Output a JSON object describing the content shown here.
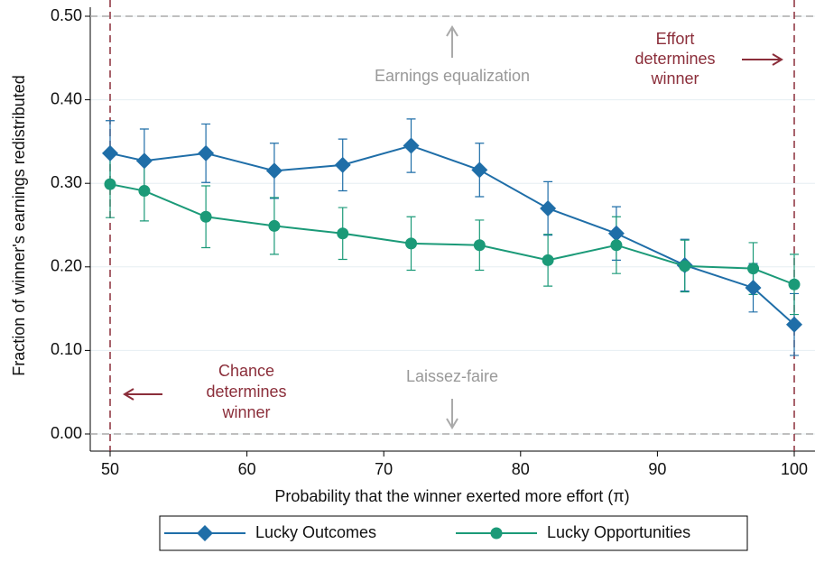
{
  "chart_data": {
    "type": "line",
    "ylabel": "Fraction of winner's earnings redistributed",
    "xlabel": "Probability that the winner exerted more effort (π)",
    "x": [
      50,
      52.5,
      57,
      62,
      67,
      72,
      77,
      82,
      87,
      92,
      97,
      100
    ],
    "series": [
      {
        "name": "Lucky Outcomes",
        "color": "#1f6ea8",
        "marker": "diamond",
        "values": [
          0.336,
          0.327,
          0.336,
          0.315,
          0.322,
          0.345,
          0.316,
          0.27,
          0.24,
          0.202,
          0.175,
          0.131
        ],
        "errors": [
          0.039,
          0.038,
          0.035,
          0.033,
          0.031,
          0.032,
          0.032,
          0.032,
          0.032,
          0.031,
          0.029,
          0.037
        ]
      },
      {
        "name": "Lucky Opportunities",
        "color": "#1b9a78",
        "marker": "circle",
        "values": [
          0.299,
          0.291,
          0.26,
          0.249,
          0.24,
          0.228,
          0.226,
          0.208,
          0.226,
          0.201,
          0.198,
          0.179
        ],
        "errors": [
          0.04,
          0.036,
          0.037,
          0.034,
          0.031,
          0.032,
          0.03,
          0.031,
          0.034,
          0.031,
          0.031,
          0.036
        ]
      }
    ],
    "xlim": [
      50,
      100
    ],
    "xticks": [
      50,
      60,
      70,
      80,
      90,
      100
    ],
    "ylim": [
      0,
      0.5
    ],
    "yticks": [
      {
        "value": 0,
        "label": "0.00"
      },
      {
        "value": 0.1,
        "label": "0.10"
      },
      {
        "value": 0.2,
        "label": "0.20"
      },
      {
        "value": 0.3,
        "label": "0.30"
      },
      {
        "value": 0.4,
        "label": "0.40"
      },
      {
        "value": 0.5,
        "label": "0.50"
      }
    ],
    "grid": true,
    "reference_lines": {
      "y": [
        0,
        0.5
      ],
      "x": [
        50,
        100
      ]
    },
    "annotations": {
      "top": "Earnings equalization",
      "bottom": "Laissez-faire",
      "right": [
        "Effort",
        "determines",
        "winner"
      ],
      "left": [
        "Chance",
        "determines",
        "winner"
      ]
    }
  }
}
